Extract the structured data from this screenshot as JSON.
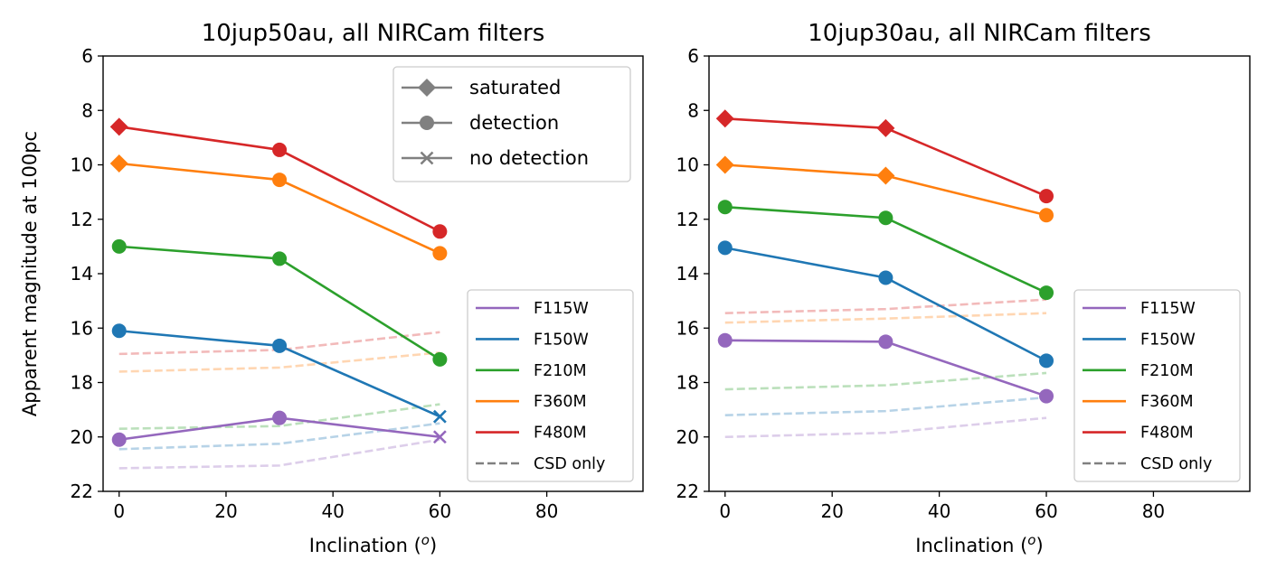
{
  "chart_data": [
    {
      "type": "line",
      "title": "10jup50au, all NIRCam filters",
      "xlabel": "Inclination (",
      "xlabel_sup": "o",
      "xlabel_end": ")",
      "ylabel": "Apparent magnitude at 100pc",
      "xlim": [
        -3,
        98
      ],
      "ylim": [
        22,
        6
      ],
      "y_inverted": true,
      "xticks": [
        0,
        20,
        40,
        60,
        80
      ],
      "yticks": [
        6,
        8,
        10,
        12,
        14,
        16,
        18,
        20,
        22
      ],
      "marker_legend": [
        {
          "label": "saturated",
          "marker": "diamond"
        },
        {
          "label": "detection",
          "marker": "circle"
        },
        {
          "label": "no detection",
          "marker": "x"
        }
      ],
      "series": [
        {
          "name": "F115W",
          "color": "#9467bd",
          "x": [
            0,
            30,
            60
          ],
          "y": [
            20.1,
            19.3,
            20.0
          ],
          "markers": [
            "circle",
            "circle",
            "x"
          ],
          "csd_x": [
            0,
            30,
            60
          ],
          "csd_y": [
            21.15,
            21.05,
            20.1
          ]
        },
        {
          "name": "F150W",
          "color": "#1f77b4",
          "x": [
            0,
            30,
            60
          ],
          "y": [
            16.1,
            16.65,
            19.25
          ],
          "markers": [
            "circle",
            "circle",
            "x"
          ],
          "csd_x": [
            0,
            30,
            60
          ],
          "csd_y": [
            20.45,
            20.25,
            19.5
          ]
        },
        {
          "name": "F210M",
          "color": "#2ca02c",
          "x": [
            0,
            30,
            60
          ],
          "y": [
            13.0,
            13.45,
            17.15
          ],
          "markers": [
            "circle",
            "circle",
            "circle"
          ],
          "csd_x": [
            0,
            30,
            60
          ],
          "csd_y": [
            19.7,
            19.6,
            18.8
          ]
        },
        {
          "name": "F360M",
          "color": "#ff7f0e",
          "x": [
            0,
            30,
            60
          ],
          "y": [
            9.95,
            10.55,
            13.25
          ],
          "markers": [
            "diamond",
            "circle",
            "circle"
          ],
          "csd_x": [
            0,
            30,
            60
          ],
          "csd_y": [
            17.6,
            17.45,
            16.9
          ]
        },
        {
          "name": "F480M",
          "color": "#d62728",
          "x": [
            0,
            30,
            60
          ],
          "y": [
            8.6,
            9.45,
            12.45
          ],
          "markers": [
            "diamond",
            "circle",
            "circle"
          ],
          "csd_x": [
            0,
            30,
            60
          ],
          "csd_y": [
            16.95,
            16.8,
            16.15
          ]
        }
      ],
      "filter_legend": [
        "F115W",
        "F150W",
        "F210M",
        "F360M",
        "F480M",
        "CSD only"
      ]
    },
    {
      "type": "line",
      "title": "10jup30au, all NIRCam filters",
      "xlabel": "Inclination (",
      "xlabel_sup": "o",
      "xlabel_end": ")",
      "ylabel": "",
      "xlim": [
        -3,
        98
      ],
      "ylim": [
        22,
        6
      ],
      "y_inverted": true,
      "xticks": [
        0,
        20,
        40,
        60,
        80
      ],
      "yticks": [
        6,
        8,
        10,
        12,
        14,
        16,
        18,
        20,
        22
      ],
      "series": [
        {
          "name": "F115W",
          "color": "#9467bd",
          "x": [
            0,
            30,
            60
          ],
          "y": [
            16.45,
            16.5,
            18.5
          ],
          "markers": [
            "circle",
            "circle",
            "circle"
          ],
          "csd_x": [
            0,
            30,
            60
          ],
          "csd_y": [
            20.0,
            19.85,
            19.3
          ]
        },
        {
          "name": "F150W",
          "color": "#1f77b4",
          "x": [
            0,
            30,
            60
          ],
          "y": [
            13.05,
            14.15,
            17.2
          ],
          "markers": [
            "circle",
            "circle",
            "circle"
          ],
          "csd_x": [
            0,
            30,
            60
          ],
          "csd_y": [
            19.2,
            19.05,
            18.55
          ]
        },
        {
          "name": "F210M",
          "color": "#2ca02c",
          "x": [
            0,
            30,
            60
          ],
          "y": [
            11.55,
            11.95,
            14.7
          ],
          "markers": [
            "circle",
            "circle",
            "circle"
          ],
          "csd_x": [
            0,
            30,
            60
          ],
          "csd_y": [
            18.25,
            18.1,
            17.65
          ]
        },
        {
          "name": "F360M",
          "color": "#ff7f0e",
          "x": [
            0,
            30,
            60
          ],
          "y": [
            10.0,
            10.4,
            11.85
          ],
          "markers": [
            "diamond",
            "diamond",
            "circle"
          ],
          "csd_x": [
            0,
            30,
            60
          ],
          "csd_y": [
            15.8,
            15.65,
            15.45
          ]
        },
        {
          "name": "F480M",
          "color": "#d62728",
          "x": [
            0,
            30,
            60
          ],
          "y": [
            8.3,
            8.65,
            11.15
          ],
          "markers": [
            "diamond",
            "diamond",
            "circle"
          ],
          "csd_x": [
            0,
            30,
            60
          ],
          "csd_y": [
            15.45,
            15.3,
            14.95
          ]
        }
      ],
      "filter_legend": [
        "F115W",
        "F150W",
        "F210M",
        "F360M",
        "F480M",
        "CSD only"
      ]
    }
  ]
}
